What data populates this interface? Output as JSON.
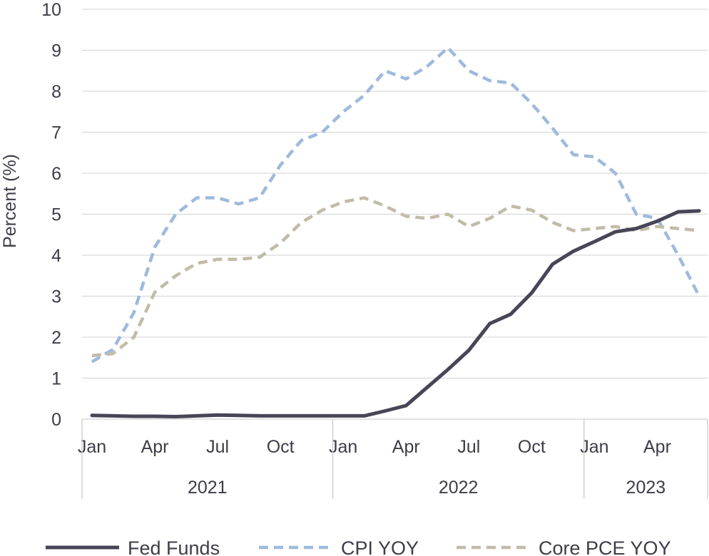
{
  "chart_data": {
    "type": "line",
    "ylabel": "Percent (%)",
    "ylim": [
      0,
      10
    ],
    "yticks": [
      "0",
      "1",
      "2",
      "3",
      "4",
      "5",
      "6",
      "7",
      "8",
      "9",
      "10"
    ],
    "grid": true,
    "legend_position": "bottom",
    "x": [
      "2021-01",
      "2021-02",
      "2021-03",
      "2021-04",
      "2021-05",
      "2021-06",
      "2021-07",
      "2021-08",
      "2021-09",
      "2021-10",
      "2021-11",
      "2021-12",
      "2022-01",
      "2022-02",
      "2022-03",
      "2022-04",
      "2022-05",
      "2022-06",
      "2022-07",
      "2022-08",
      "2022-09",
      "2022-10",
      "2022-11",
      "2022-12",
      "2023-01",
      "2023-02",
      "2023-03",
      "2023-04",
      "2023-05",
      "2023-06"
    ],
    "month_ticks": [
      "Jan",
      "Apr",
      "Jul",
      "Oct",
      "Jan",
      "Apr",
      "Jul",
      "Oct",
      "Jan",
      "Apr"
    ],
    "years": [
      "2021",
      "2022",
      "2023"
    ],
    "series": [
      {
        "name": "Fed Funds",
        "color": "#474556",
        "style": "solid",
        "values": [
          0.09,
          0.08,
          0.07,
          0.07,
          0.06,
          0.08,
          0.1,
          0.09,
          0.08,
          0.08,
          0.08,
          0.08,
          0.08,
          0.08,
          0.2,
          0.33,
          0.77,
          1.21,
          1.68,
          2.33,
          2.56,
          3.08,
          3.78,
          4.1,
          4.33,
          4.57,
          4.65,
          4.83,
          5.06,
          5.08
        ]
      },
      {
        "name": "CPI YOY",
        "color": "#9ebadd",
        "style": "dashed",
        "values": [
          1.4,
          1.7,
          2.6,
          4.2,
          5.0,
          5.4,
          5.4,
          5.25,
          5.4,
          6.2,
          6.8,
          7.0,
          7.5,
          7.9,
          8.5,
          8.3,
          8.6,
          9.06,
          8.5,
          8.26,
          8.2,
          7.7,
          7.1,
          6.45,
          6.4,
          6.0,
          5.0,
          4.9,
          4.0,
          3.0
        ]
      },
      {
        "name": "Core PCE YOY",
        "color": "#c0bca7",
        "style": "dashed",
        "values": [
          1.55,
          1.6,
          2.0,
          3.1,
          3.5,
          3.8,
          3.9,
          3.9,
          3.95,
          4.3,
          4.8,
          5.1,
          5.3,
          5.4,
          5.2,
          4.95,
          4.9,
          5.0,
          4.7,
          4.9,
          5.2,
          5.1,
          4.8,
          4.6,
          4.65,
          4.7,
          4.6,
          4.7,
          4.65,
          4.6
        ]
      }
    ]
  }
}
